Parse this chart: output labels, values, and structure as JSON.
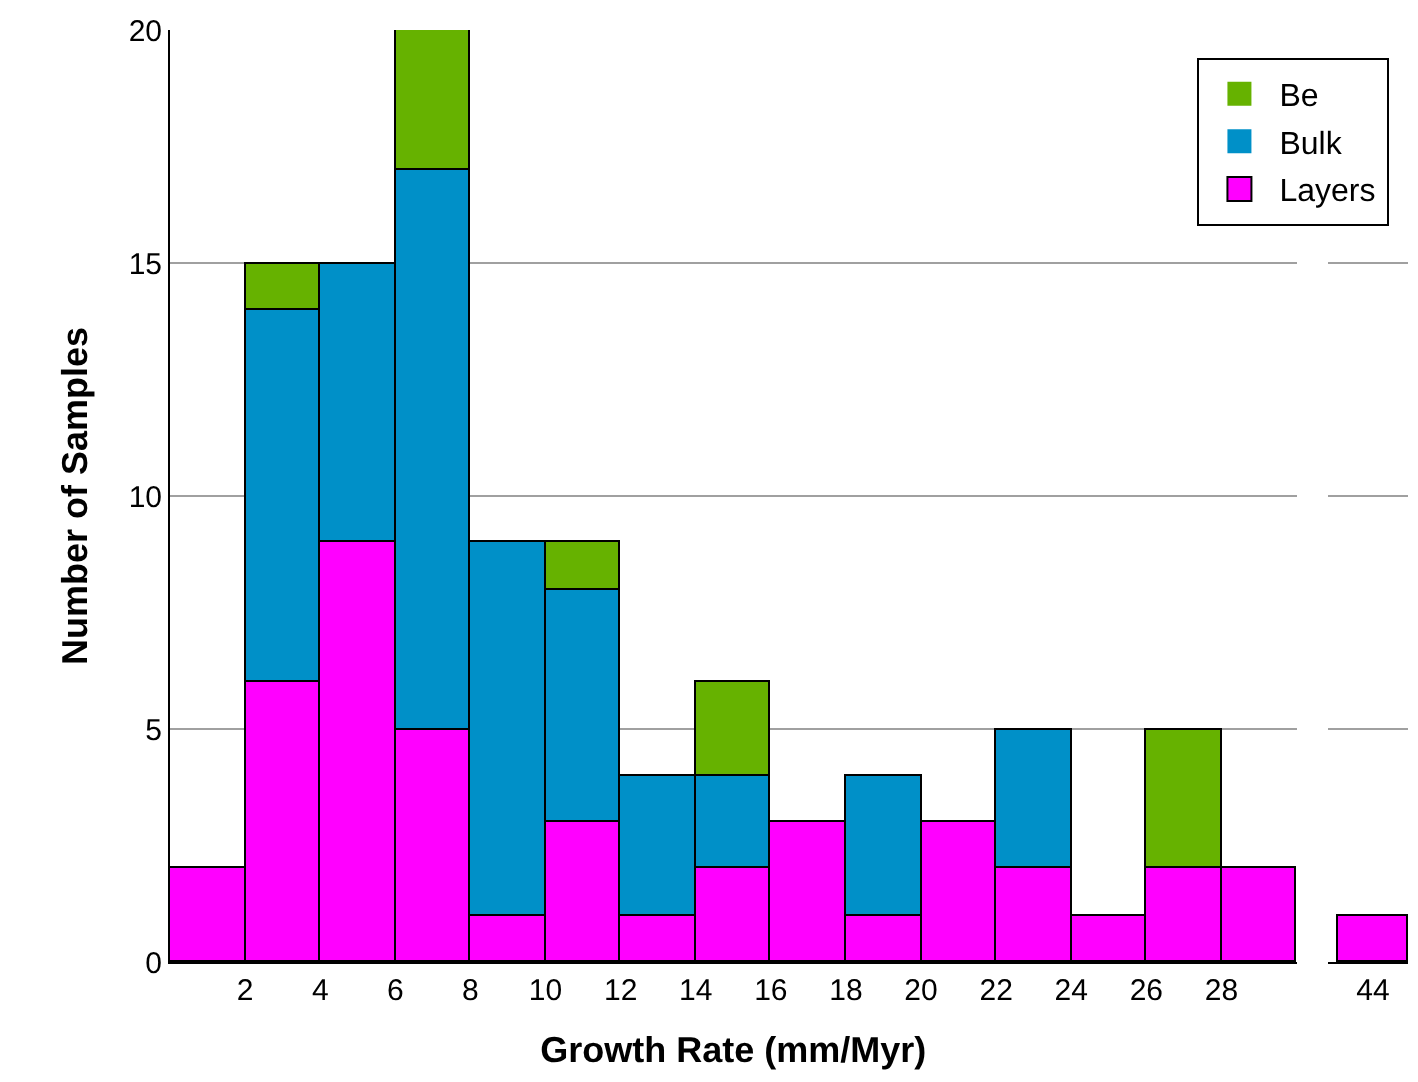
{
  "chart_data": [
    {
      "type": "bar",
      "stacked": true,
      "xlabel": "Growth Rate (mm/Myr)",
      "ylabel": "Number of Samples",
      "x": [
        1,
        3,
        5,
        7,
        9,
        11,
        13,
        15,
        17,
        19,
        21,
        23,
        25,
        27,
        29
      ],
      "series": [
        {
          "name": "Layers",
          "color": "#ff00ff",
          "values": [
            2,
            6,
            9,
            5,
            1,
            3,
            1,
            2,
            3,
            1,
            3,
            2,
            1,
            2,
            2
          ]
        },
        {
          "name": "Bulk",
          "color": "#0090c8",
          "values": [
            0,
            8,
            6,
            12,
            8,
            5,
            3,
            2,
            0,
            3,
            0,
            3,
            0,
            0,
            0
          ]
        },
        {
          "name": "Be",
          "color": "#66b200",
          "values": [
            0,
            1,
            0,
            3,
            0,
            1,
            0,
            2,
            0,
            0,
            0,
            0,
            0,
            3,
            0
          ]
        }
      ],
      "xlim": [
        0,
        30
      ],
      "xticks": [
        2,
        4,
        6,
        8,
        10,
        12,
        14,
        16,
        18,
        20,
        22,
        24,
        26,
        28
      ],
      "ylim": [
        0,
        20
      ],
      "yticks": [
        0,
        5,
        10,
        15,
        20
      ],
      "grid": "y",
      "legend": "top right"
    },
    {
      "type": "bar",
      "categories": [
        "44"
      ],
      "series": [
        {
          "color": "#ff00ff",
          "values": [
            1
          ]
        }
      ],
      "ylim": [
        0,
        20
      ],
      "yticks": [
        0,
        5,
        10,
        15,
        20
      ],
      "grid": "y",
      "tick_labels": "x"
    }
  ]
}
